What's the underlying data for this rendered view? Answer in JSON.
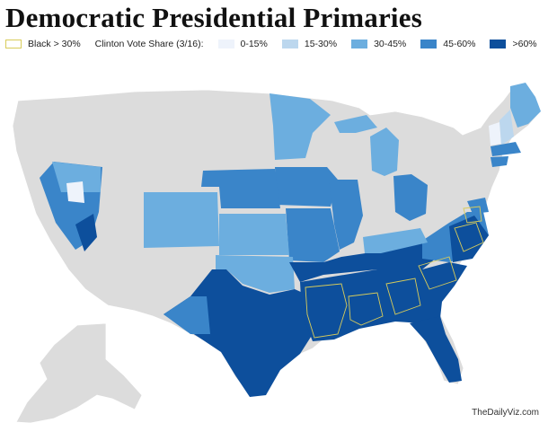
{
  "title": "Democratic Presidential Primaries",
  "legend": {
    "outline_label": "Black > 30%",
    "outline_color": "#d8cc5a",
    "scale_label": "Clinton Vote Share (3/16):",
    "bins": [
      {
        "label": "0-15%",
        "color": "#eef3fb"
      },
      {
        "label": "15-30%",
        "color": "#bcd7ee"
      },
      {
        "label": "30-45%",
        "color": "#6caedf"
      },
      {
        "label": "45-60%",
        "color": "#3a85c9"
      },
      {
        "label": ">60%",
        "color": "#0d4f9c"
      }
    ]
  },
  "no_data_color": "#dcdcdc",
  "credit": "TheDailyViz.com"
}
